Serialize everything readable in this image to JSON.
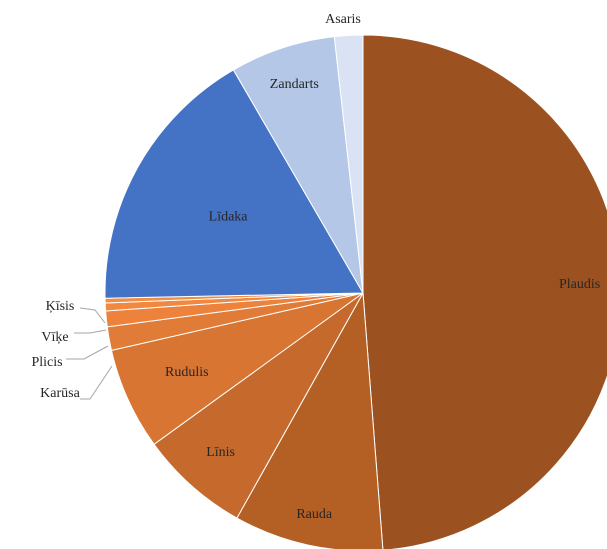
{
  "chart_data": {
    "type": "pie",
    "title": "",
    "start_angle_deg": 0,
    "direction": "clockwise",
    "slices": [
      {
        "label": "Plaudis",
        "value": 49.5,
        "color": "#9c5220"
      },
      {
        "label": "Rauda",
        "value": 9.5,
        "color": "#b45f24"
      },
      {
        "label": "Līnis",
        "value": 7.0,
        "color": "#c56a2c"
      },
      {
        "label": "Rudulis",
        "value": 6.5,
        "color": "#d87533"
      },
      {
        "label": "Karūsa",
        "value": 1.5,
        "color": "#e07c38"
      },
      {
        "label": "Plicis",
        "value": 1.0,
        "color": "#ec823b"
      },
      {
        "label": "Vīķe",
        "value": 0.5,
        "color": "#f0883f"
      },
      {
        "label": "Ķīsis",
        "value": 0.3,
        "color": "#f28d44"
      },
      {
        "label": "Līdaka",
        "value": 17.2,
        "color": "#4472c4"
      },
      {
        "label": "Zandarts",
        "value": 6.7,
        "color": "#b4c7e7"
      },
      {
        "label": "Asaris",
        "value": 1.8,
        "color": "#dae3f3"
      }
    ]
  }
}
